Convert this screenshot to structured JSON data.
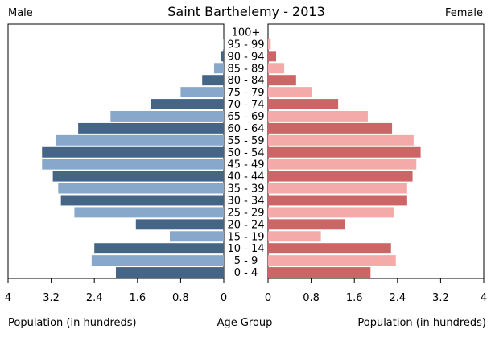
{
  "chart_data": {
    "type": "bar",
    "orientation": "horizontal-pyramid",
    "title": "Saint Barthelemy - 2013",
    "left_label": "Male",
    "right_label": "Female",
    "xlabel_left": "Population (in hundreds)",
    "xlabel_center": "Age Group",
    "xlabel_right": "Population (in hundreds)",
    "xlim": [
      0,
      4
    ],
    "ticks": [
      "4",
      "3.2",
      "2.4",
      "1.6",
      "0.8",
      "0"
    ],
    "ticks_right": [
      "0",
      "0.8",
      "1.6",
      "2.4",
      "3.2",
      "4"
    ],
    "categories": [
      "100+",
      "95 - 99",
      "90 - 94",
      "85 - 89",
      "80 - 84",
      "75 - 79",
      "70 - 74",
      "65 - 69",
      "60 - 64",
      "55 - 59",
      "50 - 54",
      "45 - 49",
      "40 - 44",
      "35 - 39",
      "30 - 34",
      "25 - 29",
      "20 - 24",
      "15 - 19",
      "10 - 14",
      "5 - 9",
      "0 - 4"
    ],
    "series": [
      {
        "name": "Male",
        "side": "left",
        "values": [
          0.0,
          0.01,
          0.05,
          0.18,
          0.4,
          0.8,
          1.35,
          2.1,
          2.7,
          3.12,
          3.37,
          3.37,
          3.17,
          3.07,
          3.02,
          2.77,
          1.63,
          1.0,
          2.4,
          2.45,
          2.0
        ]
      },
      {
        "name": "Female",
        "side": "right",
        "values": [
          0.0,
          0.05,
          0.15,
          0.3,
          0.52,
          0.82,
          1.3,
          1.85,
          2.3,
          2.7,
          2.83,
          2.75,
          2.68,
          2.58,
          2.58,
          2.33,
          1.43,
          0.98,
          2.28,
          2.37,
          1.9
        ]
      }
    ],
    "colors": {
      "male_dark": "#456587",
      "male_light": "#88a8cb",
      "female_dark": "#cc6666",
      "female_light": "#f5aaaa"
    },
    "grid": false,
    "legend": "none"
  }
}
